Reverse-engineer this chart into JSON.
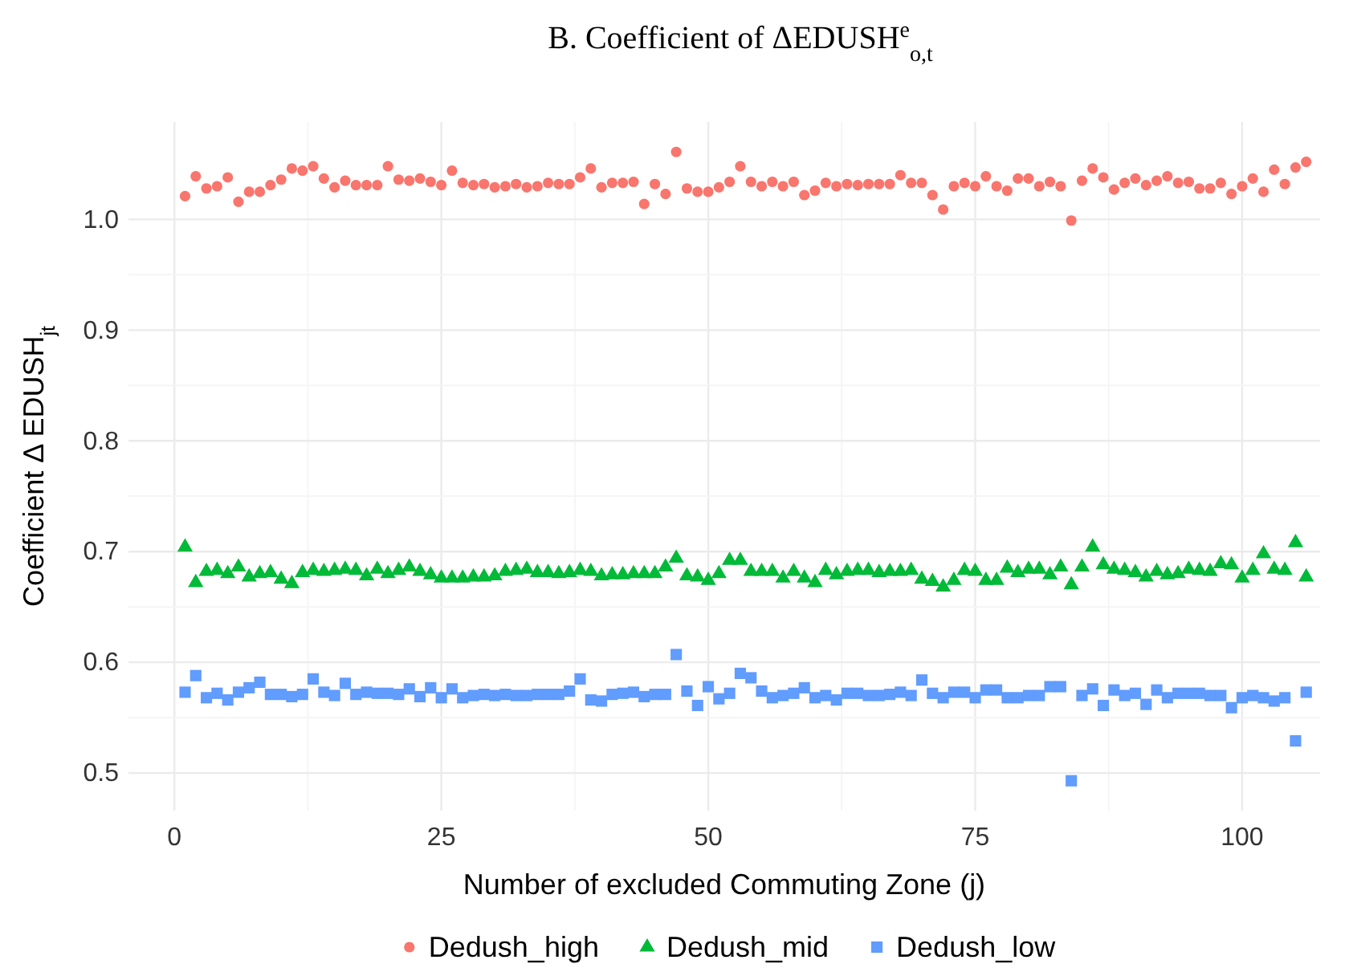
{
  "chart_data": {
    "type": "scatter",
    "title": "B. Coefficient of ΔEDUSH$^{e}$$_{o,t}$",
    "xlabel": "Number of excluded Commuting Zone (j)",
    "ylabel": "Coefficient  Δ EDUSH$_{jt}$",
    "x": [
      1,
      2,
      3,
      4,
      5,
      6,
      7,
      8,
      9,
      10,
      11,
      12,
      13,
      14,
      15,
      16,
      17,
      18,
      19,
      20,
      21,
      22,
      23,
      24,
      25,
      26,
      27,
      28,
      29,
      30,
      31,
      32,
      33,
      34,
      35,
      36,
      37,
      38,
      39,
      40,
      41,
      42,
      43,
      44,
      45,
      46,
      47,
      48,
      49,
      50,
      51,
      52,
      53,
      54,
      55,
      56,
      57,
      58,
      59,
      60,
      61,
      62,
      63,
      64,
      65,
      66,
      67,
      68,
      69,
      70,
      71,
      72,
      73,
      74,
      75,
      76,
      77,
      78,
      79,
      80,
      81,
      82,
      83,
      84,
      85,
      86,
      87,
      88,
      89,
      90,
      91,
      92,
      93,
      94,
      95,
      96,
      97,
      98,
      99,
      100,
      101,
      102,
      103,
      104,
      105,
      106
    ],
    "series": [
      {
        "name": "Dedush_high",
        "color": "#f8766d",
        "marker": "circle",
        "values": [
          1.021,
          1.039,
          1.028,
          1.03,
          1.038,
          1.016,
          1.025,
          1.025,
          1.031,
          1.036,
          1.046,
          1.044,
          1.048,
          1.037,
          1.029,
          1.035,
          1.031,
          1.031,
          1.031,
          1.048,
          1.036,
          1.035,
          1.037,
          1.034,
          1.031,
          1.044,
          1.033,
          1.031,
          1.032,
          1.029,
          1.03,
          1.032,
          1.029,
          1.03,
          1.033,
          1.032,
          1.032,
          1.038,
          1.046,
          1.029,
          1.033,
          1.033,
          1.034,
          1.014,
          1.032,
          1.023,
          1.061,
          1.028,
          1.025,
          1.025,
          1.029,
          1.034,
          1.048,
          1.034,
          1.03,
          1.034,
          1.03,
          1.034,
          1.022,
          1.026,
          1.033,
          1.03,
          1.032,
          1.031,
          1.032,
          1.032,
          1.032,
          1.04,
          1.033,
          1.033,
          1.022,
          1.009,
          1.03,
          1.033,
          1.03,
          1.039,
          1.03,
          1.026,
          1.037,
          1.037,
          1.03,
          1.034,
          1.03,
          0.999,
          1.035,
          1.046,
          1.038,
          1.027,
          1.033,
          1.037,
          1.031,
          1.035,
          1.039,
          1.033,
          1.034,
          1.028,
          1.028,
          1.033,
          1.023,
          1.03,
          1.037,
          1.025,
          1.045,
          1.032,
          1.047,
          1.052
        ]
      },
      {
        "name": "Dedush_mid",
        "color": "#00ba38",
        "marker": "triangle",
        "values": [
          0.704,
          0.672,
          0.682,
          0.683,
          0.68,
          0.686,
          0.677,
          0.68,
          0.681,
          0.675,
          0.671,
          0.681,
          0.683,
          0.682,
          0.683,
          0.684,
          0.683,
          0.678,
          0.684,
          0.68,
          0.683,
          0.686,
          0.682,
          0.679,
          0.676,
          0.676,
          0.676,
          0.677,
          0.677,
          0.678,
          0.682,
          0.683,
          0.684,
          0.681,
          0.681,
          0.68,
          0.681,
          0.683,
          0.682,
          0.678,
          0.679,
          0.679,
          0.68,
          0.68,
          0.68,
          0.686,
          0.694,
          0.678,
          0.677,
          0.674,
          0.68,
          0.692,
          0.692,
          0.682,
          0.682,
          0.682,
          0.676,
          0.682,
          0.676,
          0.672,
          0.683,
          0.679,
          0.682,
          0.683,
          0.683,
          0.681,
          0.682,
          0.682,
          0.683,
          0.675,
          0.673,
          0.668,
          0.674,
          0.683,
          0.682,
          0.674,
          0.674,
          0.685,
          0.681,
          0.684,
          0.684,
          0.679,
          0.686,
          0.67,
          0.686,
          0.704,
          0.688,
          0.684,
          0.683,
          0.681,
          0.677,
          0.682,
          0.679,
          0.68,
          0.684,
          0.683,
          0.682,
          0.689,
          0.688,
          0.676,
          0.683,
          0.698,
          0.684,
          0.683,
          0.708,
          0.677
        ]
      },
      {
        "name": "Dedush_low",
        "color": "#619cff",
        "marker": "square",
        "values": [
          0.573,
          0.588,
          0.568,
          0.572,
          0.566,
          0.573,
          0.577,
          0.582,
          0.571,
          0.571,
          0.569,
          0.571,
          0.585,
          0.573,
          0.57,
          0.581,
          0.571,
          0.573,
          0.572,
          0.572,
          0.571,
          0.576,
          0.569,
          0.577,
          0.568,
          0.576,
          0.568,
          0.57,
          0.571,
          0.57,
          0.571,
          0.57,
          0.57,
          0.571,
          0.571,
          0.571,
          0.574,
          0.585,
          0.566,
          0.565,
          0.571,
          0.572,
          0.573,
          0.569,
          0.571,
          0.571,
          0.607,
          0.574,
          0.561,
          0.578,
          0.567,
          0.572,
          0.59,
          0.586,
          0.574,
          0.568,
          0.57,
          0.572,
          0.577,
          0.568,
          0.57,
          0.566,
          0.572,
          0.572,
          0.57,
          0.57,
          0.571,
          0.573,
          0.57,
          0.584,
          0.572,
          0.568,
          0.573,
          0.573,
          0.568,
          0.575,
          0.575,
          0.568,
          0.568,
          0.57,
          0.57,
          0.578,
          0.578,
          0.493,
          0.57,
          0.576,
          0.561,
          0.575,
          0.57,
          0.572,
          0.562,
          0.575,
          0.568,
          0.572,
          0.572,
          0.572,
          0.57,
          0.57,
          0.559,
          0.568,
          0.57,
          0.568,
          0.565,
          0.568,
          0.529,
          0.573
        ]
      }
    ],
    "xlim": [
      -4.3,
      107.3
    ],
    "xticks": [
      0,
      25,
      50,
      75,
      100
    ],
    "ylim": [
      0.466,
      1.088
    ],
    "yticks": [
      {
        "value": 0.5,
        "label": "0.5"
      },
      {
        "value": 0.6,
        "label": "0.6"
      },
      {
        "value": 0.7,
        "label": "0.7"
      },
      {
        "value": 0.8,
        "label": "0.8"
      },
      {
        "value": 0.9,
        "label": "0.9"
      },
      {
        "value": 1.0,
        "label": "1.0"
      }
    ],
    "grid": true,
    "legend": "bottom"
  }
}
